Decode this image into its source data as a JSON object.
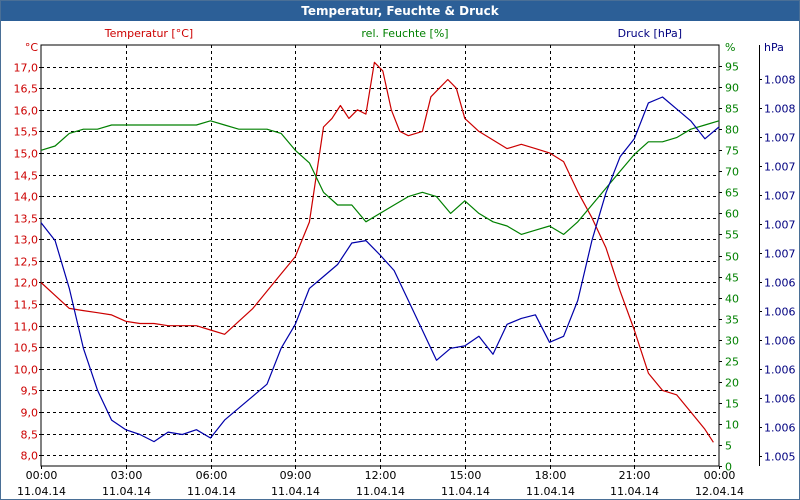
{
  "window": {
    "title": "Temperatur, Feuchte & Druck"
  },
  "chart_data": {
    "type": "line",
    "title": "Temperatur, Feuchte & Druck",
    "grid": true,
    "x_ticks": [
      {
        "time": "00:00",
        "date": "11.04.14"
      },
      {
        "time": "03:00",
        "date": "11.04.14"
      },
      {
        "time": "06:00",
        "date": "11.04.14"
      },
      {
        "time": "09:00",
        "date": "11.04.14"
      },
      {
        "time": "12:00",
        "date": "11.04.14"
      },
      {
        "time": "15:00",
        "date": "11.04.14"
      },
      {
        "time": "18:00",
        "date": "11.04.14"
      },
      {
        "time": "21:00",
        "date": "11.04.14"
      },
      {
        "time": "00:00",
        "date": "12.04.14"
      }
    ],
    "x_range_hours": [
      0,
      24
    ],
    "axes": {
      "temperature": {
        "label": "Temperatur [°C]",
        "unit": "°C",
        "color": "#cc0000",
        "side": "left",
        "range": [
          7.75,
          17.5
        ],
        "ticks": [
          "8,0",
          "8,5",
          "9,0",
          "9,5",
          "10,0",
          "10,5",
          "11,0",
          "11,5",
          "12,0",
          "12,5",
          "13,0",
          "13,5",
          "14,0",
          "14,5",
          "15,0",
          "15,5",
          "16,0",
          "16,5",
          "17,0"
        ]
      },
      "humidity": {
        "label": "rel. Feuchte [%]",
        "unit": "%",
        "color": "#008000",
        "side": "right",
        "range": [
          0,
          100
        ],
        "ticks": [
          "0",
          "5",
          "10",
          "15",
          "20",
          "25",
          "30",
          "35",
          "40",
          "45",
          "50",
          "55",
          "60",
          "65",
          "70",
          "75",
          "80",
          "85",
          "90",
          "95"
        ]
      },
      "pressure": {
        "label": "Druck [hPa]",
        "unit": "hPa",
        "color": "#000080",
        "side": "right-outer",
        "ticks": [
          "1.005",
          "1.006",
          "1.006",
          "1.006",
          "1.006",
          "1.006",
          "1.006",
          "1.007",
          "1.007",
          "1.007",
          "1.007",
          "1.007",
          "1.008",
          "1.008"
        ]
      }
    },
    "series": [
      {
        "name": "Temperatur [°C]",
        "axis": "temperature",
        "color": "#cc0000",
        "points": [
          [
            0,
            12.0
          ],
          [
            0.5,
            11.7
          ],
          [
            1,
            11.4
          ],
          [
            1.5,
            11.35
          ],
          [
            2,
            11.3
          ],
          [
            2.5,
            11.25
          ],
          [
            3,
            11.1
          ],
          [
            3.5,
            11.05
          ],
          [
            4,
            11.05
          ],
          [
            4.5,
            11.0
          ],
          [
            5,
            11.0
          ],
          [
            5.5,
            11.0
          ],
          [
            6,
            10.9
          ],
          [
            6.5,
            10.8
          ],
          [
            7,
            11.1
          ],
          [
            7.5,
            11.4
          ],
          [
            8,
            11.8
          ],
          [
            8.5,
            12.2
          ],
          [
            9,
            12.6
          ],
          [
            9.5,
            13.4
          ],
          [
            10,
            15.6
          ],
          [
            10.3,
            15.8
          ],
          [
            10.6,
            16.1
          ],
          [
            10.9,
            15.8
          ],
          [
            11.2,
            16.0
          ],
          [
            11.5,
            15.9
          ],
          [
            11.8,
            17.1
          ],
          [
            12.1,
            16.9
          ],
          [
            12.4,
            16.0
          ],
          [
            12.7,
            15.5
          ],
          [
            13.0,
            15.4
          ],
          [
            13.5,
            15.5
          ],
          [
            13.8,
            16.3
          ],
          [
            14.1,
            16.5
          ],
          [
            14.4,
            16.7
          ],
          [
            14.7,
            16.5
          ],
          [
            15.0,
            15.8
          ],
          [
            15.5,
            15.5
          ],
          [
            16.0,
            15.3
          ],
          [
            16.5,
            15.1
          ],
          [
            17.0,
            15.2
          ],
          [
            17.5,
            15.1
          ],
          [
            18.0,
            15.0
          ],
          [
            18.5,
            14.8
          ],
          [
            19.0,
            14.1
          ],
          [
            19.5,
            13.5
          ],
          [
            20.0,
            12.8
          ],
          [
            20.5,
            11.8
          ],
          [
            21.0,
            10.9
          ],
          [
            21.5,
            9.9
          ],
          [
            22.0,
            9.5
          ],
          [
            22.5,
            9.4
          ],
          [
            23.0,
            9.0
          ],
          [
            23.5,
            8.6
          ],
          [
            23.8,
            8.3
          ]
        ]
      },
      {
        "name": "rel. Feuchte [%]",
        "axis": "humidity",
        "color": "#008000",
        "points": [
          [
            0,
            75
          ],
          [
            0.5,
            76
          ],
          [
            1,
            79
          ],
          [
            1.5,
            80
          ],
          [
            2,
            80
          ],
          [
            2.5,
            81
          ],
          [
            3,
            81
          ],
          [
            3.5,
            81
          ],
          [
            4,
            81
          ],
          [
            4.5,
            81
          ],
          [
            5,
            81
          ],
          [
            5.5,
            81
          ],
          [
            6,
            82
          ],
          [
            6.5,
            81
          ],
          [
            7,
            80
          ],
          [
            7.5,
            80
          ],
          [
            8,
            80
          ],
          [
            8.5,
            79
          ],
          [
            9,
            75
          ],
          [
            9.5,
            72
          ],
          [
            10,
            65
          ],
          [
            10.5,
            62
          ],
          [
            11,
            62
          ],
          [
            11.5,
            58
          ],
          [
            12,
            60
          ],
          [
            12.5,
            62
          ],
          [
            13,
            64
          ],
          [
            13.5,
            65
          ],
          [
            14,
            64
          ],
          [
            14.5,
            60
          ],
          [
            15,
            63
          ],
          [
            15.5,
            60
          ],
          [
            16,
            58
          ],
          [
            16.5,
            57
          ],
          [
            17,
            55
          ],
          [
            17.5,
            56
          ],
          [
            18,
            57
          ],
          [
            18.5,
            55
          ],
          [
            19,
            58
          ],
          [
            19.5,
            62
          ],
          [
            20,
            66
          ],
          [
            20.5,
            70
          ],
          [
            21,
            74
          ],
          [
            21.5,
            77
          ],
          [
            22,
            77
          ],
          [
            22.5,
            78
          ],
          [
            23,
            80
          ],
          [
            23.5,
            81
          ],
          [
            24,
            82
          ]
        ]
      },
      {
        "name": "Druck [hPa]",
        "axis": "pressure",
        "color": "#0000aa",
        "points": [
          [
            0,
            1.00695
          ],
          [
            0.5,
            1.0068
          ],
          [
            1,
            1.0064
          ],
          [
            1.5,
            1.0059
          ],
          [
            2,
            1.00555
          ],
          [
            2.5,
            1.0053
          ],
          [
            3,
            1.00522
          ],
          [
            3.5,
            1.00518
          ],
          [
            4,
            1.00512
          ],
          [
            4.5,
            1.0052
          ],
          [
            5,
            1.00518
          ],
          [
            5.5,
            1.00522
          ],
          [
            6,
            1.00515
          ],
          [
            6.5,
            1.0053
          ],
          [
            7,
            1.0054
          ],
          [
            7.5,
            1.0055
          ],
          [
            8,
            1.0056
          ],
          [
            8.5,
            1.0059
          ],
          [
            9,
            1.0061
          ],
          [
            9.5,
            1.0064
          ],
          [
            10,
            1.0065
          ],
          [
            10.5,
            1.0066
          ],
          [
            11,
            1.00678
          ],
          [
            11.5,
            1.0068
          ],
          [
            12,
            1.00668
          ],
          [
            12.5,
            1.00655
          ],
          [
            13,
            1.0063
          ],
          [
            13.5,
            1.00605
          ],
          [
            14,
            1.0058
          ],
          [
            14.5,
            1.0059
          ],
          [
            15,
            1.00592
          ],
          [
            15.5,
            1.006
          ],
          [
            16,
            1.00585
          ],
          [
            16.5,
            1.0061
          ],
          [
            17,
            1.00615
          ],
          [
            17.5,
            1.00618
          ],
          [
            18,
            1.00595
          ],
          [
            18.5,
            1.006
          ],
          [
            19,
            1.0063
          ],
          [
            19.5,
            1.0068
          ],
          [
            20,
            1.0072
          ],
          [
            20.5,
            1.0075
          ],
          [
            21,
            1.00765
          ],
          [
            21.5,
            1.00795
          ],
          [
            22,
            1.008
          ],
          [
            22.5,
            1.0079
          ],
          [
            23,
            1.0078
          ],
          [
            23.5,
            1.00765
          ],
          [
            24,
            1.00775
          ]
        ]
      }
    ]
  }
}
